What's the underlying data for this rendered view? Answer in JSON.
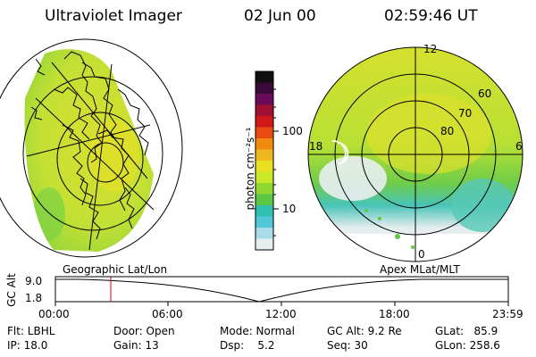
{
  "header": {
    "title": "Ultraviolet Imager",
    "date": "02 Jun 00",
    "time": "02:59:46 UT"
  },
  "colorbar": {
    "label": "photon cm⁻²s⁻¹",
    "ticks": [
      "100",
      "10"
    ],
    "colors": [
      "#101010",
      "#3a0a3a",
      "#6a0a5a",
      "#a01030",
      "#d01818",
      "#e84a10",
      "#f08a10",
      "#f0b820",
      "#e8e020",
      "#c8e828",
      "#8ed830",
      "#5ac840",
      "#30c0b0",
      "#50c8d8",
      "#a8dce8",
      "#e6eef0"
    ]
  },
  "map_left": {
    "caption": "Geographic Lat/Lon"
  },
  "map_right": {
    "caption": "Apex MLat/MLT",
    "mlt_labels": [
      "12",
      "18",
      "6",
      "0"
    ],
    "lat_labels": [
      "60",
      "70",
      "80"
    ]
  },
  "altitude_plot": {
    "ylabel": "GC Alt",
    "y_ticks": [
      "9.0",
      "1.8"
    ],
    "x_ticks": [
      "00:00",
      "06:00",
      "12:00",
      "18:00",
      "23:59"
    ]
  },
  "info": {
    "flt": "Flt: LBHL",
    "ip": "IP: 18.0",
    "door": "Door: Open",
    "gain": "Gain: 13",
    "mode": "Mode: Normal",
    "dsp": "Dsp:    5.2",
    "gcalt": "GC Alt: 9.2 Re",
    "seq": "Seq: 30",
    "glat": "GLat:   85.9",
    "glon": "GLon: 258.6"
  }
}
